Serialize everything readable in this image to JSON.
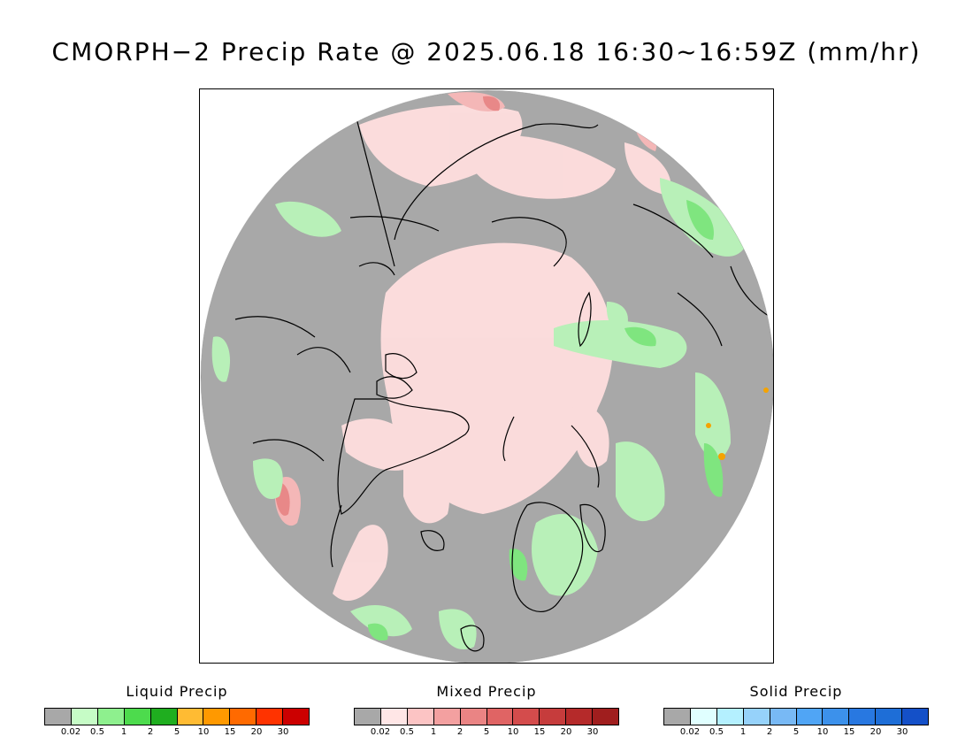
{
  "title": "CMORPH−2 Precip Rate @ 2025.06.18 16:30~16:59Z (mm/hr)",
  "map": {
    "projection": "north-polar-stereographic",
    "colors": {
      "background_gray": "#a8a8a8",
      "mixed_light": "#ffdede",
      "mixed_pink": "#f4b7b7",
      "mixed_medium": "#e88888",
      "liquid_light": "#c4f5c4",
      "liquid_green": "#7fe57f",
      "liquid_bright": "#2fc02f",
      "liquid_orange": "#f5a300",
      "coastline": "#000000"
    }
  },
  "legends": [
    {
      "title": "Liquid Precip",
      "colors": [
        "#a8a8a8",
        "#c6fcc6",
        "#8ef08e",
        "#4ddb4d",
        "#1fae1f",
        "#ffbb33",
        "#ff9900",
        "#ff6a00",
        "#ff3300",
        "#cc0000"
      ],
      "ticks": [
        "0.02",
        "0.5",
        "1",
        "2",
        "5",
        "10",
        "15",
        "20",
        "30"
      ]
    },
    {
      "title": "Mixed Precip",
      "colors": [
        "#a8a8a8",
        "#ffe6e6",
        "#fcc4c4",
        "#f3a0a0",
        "#ea8484",
        "#e06464",
        "#d44c4c",
        "#c63c3c",
        "#b52a2a",
        "#a01e1e"
      ],
      "ticks": [
        "0.02",
        "0.5",
        "1",
        "2",
        "5",
        "10",
        "15",
        "20",
        "30"
      ]
    },
    {
      "title": "Solid Precip",
      "colors": [
        "#a8a8a8",
        "#e0ffff",
        "#b4f0ff",
        "#96d2fa",
        "#78b9f5",
        "#50a5f5",
        "#3c91eb",
        "#2878e1",
        "#1e6ed7",
        "#1450c8"
      ],
      "ticks": [
        "0.02",
        "0.5",
        "1",
        "2",
        "5",
        "10",
        "15",
        "20",
        "30"
      ]
    }
  ]
}
